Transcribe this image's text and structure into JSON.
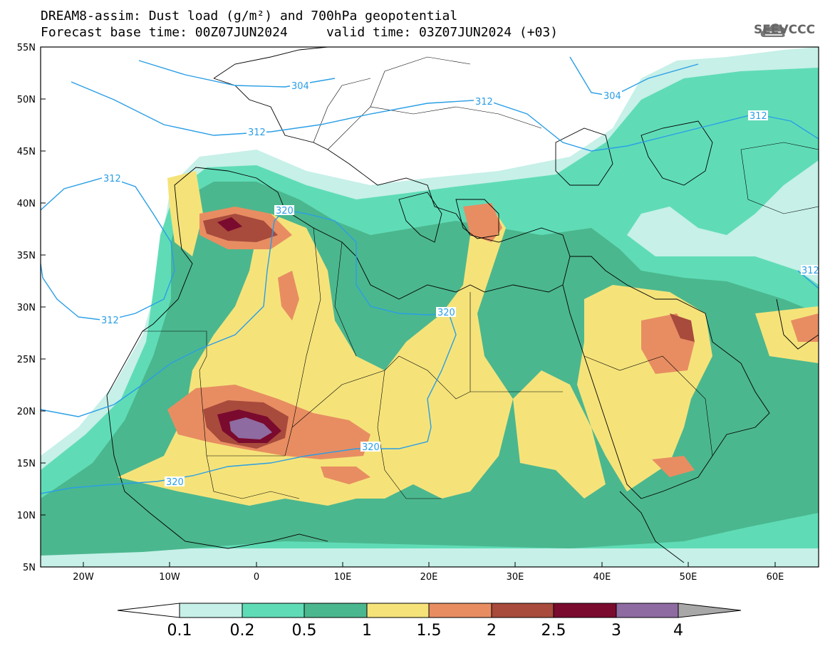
{
  "header": {
    "title_line1": "DREAM8-assim: Dust load (g/m²) and 700hPa geopotential",
    "title_line2": "Forecast base time: 00Z07JUN2024     valid time: 03Z07JUN2024 (+03)"
  },
  "logo": {
    "text": "SEEVCCC",
    "icon": "cloud-icon"
  },
  "axes": {
    "lat_ticks": [
      "55N",
      "50N",
      "45N",
      "40N",
      "35N",
      "30N",
      "25N",
      "20N",
      "15N",
      "10N",
      "5N"
    ],
    "lon_ticks": [
      "20W",
      "10W",
      "0",
      "10E",
      "20E",
      "30E",
      "40E",
      "50E",
      "60E"
    ]
  },
  "contour_labels": [
    "304",
    "304",
    "312",
    "312",
    "312",
    "312",
    "312",
    "312",
    "320",
    "320",
    "320",
    "320",
    "312"
  ],
  "colorbar": {
    "labels": [
      "0.1",
      "0.2",
      "0.5",
      "1",
      "1.5",
      "2",
      "2.5",
      "3",
      "4"
    ],
    "colors": [
      "#c6f0e8",
      "#5fdcb6",
      "#4bb78e",
      "#f5e37a",
      "#e88d62",
      "#a84a3c",
      "#7a0a2e",
      "#8e6ba0",
      "#a8a8a8"
    ]
  }
}
